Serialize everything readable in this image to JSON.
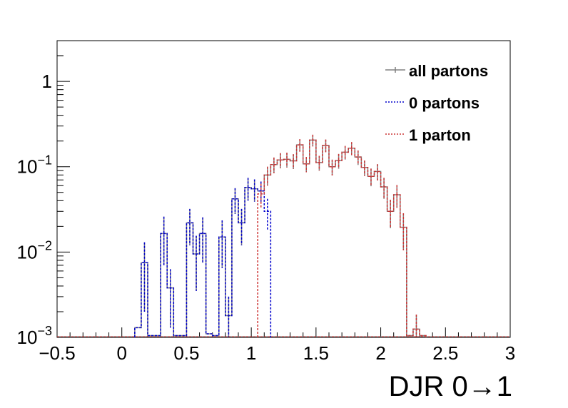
{
  "chart_data": {
    "type": "line",
    "xlabel": "DJR 0→1",
    "ylabel": "",
    "log_y": true,
    "xlim": [
      -0.5,
      3.0
    ],
    "ylim": [
      0.001,
      3.0
    ],
    "x_ticks": [
      -0.5,
      0,
      0.5,
      1,
      1.5,
      2,
      2.5,
      3
    ],
    "x_tick_labels": [
      "−0.5",
      "0",
      "0.5",
      "1",
      "1.5",
      "2",
      "2.5",
      "3"
    ],
    "y_ticks": [
      {
        "value": 0.001,
        "base": "10",
        "exp": "−3"
      },
      {
        "value": 0.01,
        "base": "10",
        "exp": "−2"
      },
      {
        "value": 0.1,
        "base": "10",
        "exp": "−1"
      },
      {
        "value": 1,
        "base": "1",
        "exp": ""
      }
    ],
    "bin_width": 0.05,
    "legend_position": "top-right",
    "series": [
      {
        "name": "all partons",
        "color": "#808080",
        "style": "solid",
        "bins": [
          {
            "x0": 0.1,
            "y": 0.0013
          },
          {
            "x0": 0.15,
            "y": 0.0075,
            "e": 0.0055
          },
          {
            "x0": 0.2,
            "y": 0.00105
          },
          {
            "x0": 0.25,
            "y": 0.00105
          },
          {
            "x0": 0.3,
            "y": 0.0165,
            "e": 0.0095
          },
          {
            "x0": 0.35,
            "y": 0.0038,
            "e": 0.0025
          },
          {
            "x0": 0.4,
            "y": 0.00105
          },
          {
            "x0": 0.45,
            "y": 0.00105
          },
          {
            "x0": 0.5,
            "y": 0.022,
            "e": 0.01
          },
          {
            "x0": 0.55,
            "y": 0.0095,
            "e": 0.006
          },
          {
            "x0": 0.6,
            "y": 0.0165,
            "e": 0.009
          },
          {
            "x0": 0.65,
            "y": 0.0011
          },
          {
            "x0": 0.7,
            "y": 0.00105
          },
          {
            "x0": 0.75,
            "y": 0.015,
            "e": 0.0085
          },
          {
            "x0": 0.8,
            "y": 0.0018,
            "e": 0.0012
          },
          {
            "x0": 0.85,
            "y": 0.042,
            "e": 0.014
          },
          {
            "x0": 0.9,
            "y": 0.022,
            "e": 0.01
          },
          {
            "x0": 0.95,
            "y": 0.057,
            "e": 0.017
          },
          {
            "x0": 1.0,
            "y": 0.055,
            "e": 0.016
          },
          {
            "x0": 1.05,
            "y": 0.052,
            "e": 0.015
          },
          {
            "x0": 1.1,
            "y": 0.08,
            "e": 0.02
          },
          {
            "x0": 1.15,
            "y": 0.106,
            "e": 0.022
          },
          {
            "x0": 1.2,
            "y": 0.12,
            "e": 0.024
          },
          {
            "x0": 1.25,
            "y": 0.122,
            "e": 0.024
          },
          {
            "x0": 1.3,
            "y": 0.117,
            "e": 0.023
          },
          {
            "x0": 1.35,
            "y": 0.18,
            "e": 0.03
          },
          {
            "x0": 1.4,
            "y": 0.108,
            "e": 0.022
          },
          {
            "x0": 1.45,
            "y": 0.205,
            "e": 0.032
          },
          {
            "x0": 1.5,
            "y": 0.112,
            "e": 0.022
          },
          {
            "x0": 1.55,
            "y": 0.178,
            "e": 0.03
          },
          {
            "x0": 1.6,
            "y": 0.1,
            "e": 0.021
          },
          {
            "x0": 1.65,
            "y": 0.118,
            "e": 0.023
          },
          {
            "x0": 1.7,
            "y": 0.148,
            "e": 0.027
          },
          {
            "x0": 1.75,
            "y": 0.165,
            "e": 0.029
          },
          {
            "x0": 1.8,
            "y": 0.13,
            "e": 0.025
          },
          {
            "x0": 1.85,
            "y": 0.098,
            "e": 0.02
          },
          {
            "x0": 1.9,
            "y": 0.077,
            "e": 0.018
          },
          {
            "x0": 1.95,
            "y": 0.088,
            "e": 0.019
          },
          {
            "x0": 2.0,
            "y": 0.058,
            "e": 0.016
          },
          {
            "x0": 2.05,
            "y": 0.03,
            "e": 0.011
          },
          {
            "x0": 2.1,
            "y": 0.047,
            "e": 0.014
          },
          {
            "x0": 2.15,
            "y": 0.0195,
            "e": 0.009
          },
          {
            "x0": 2.2,
            "y": 0.00105
          },
          {
            "x0": 2.25,
            "y": 0.00125,
            "e": 0.0006
          },
          {
            "x0": 2.3,
            "y": 0.00105
          }
        ]
      },
      {
        "name": "0 partons",
        "color": "#0000cc",
        "style": "dotted",
        "bins": [
          {
            "x0": 0.1,
            "y": 0.0013
          },
          {
            "x0": 0.15,
            "y": 0.0075,
            "e": 0.0055
          },
          {
            "x0": 0.2,
            "y": 0.00105
          },
          {
            "x0": 0.25,
            "y": 0.00105
          },
          {
            "x0": 0.3,
            "y": 0.0165,
            "e": 0.0095
          },
          {
            "x0": 0.35,
            "y": 0.0038,
            "e": 0.0025
          },
          {
            "x0": 0.4,
            "y": 0.00105
          },
          {
            "x0": 0.45,
            "y": 0.00105
          },
          {
            "x0": 0.5,
            "y": 0.022,
            "e": 0.01
          },
          {
            "x0": 0.55,
            "y": 0.0095,
            "e": 0.006
          },
          {
            "x0": 0.6,
            "y": 0.0165,
            "e": 0.009
          },
          {
            "x0": 0.65,
            "y": 0.0011
          },
          {
            "x0": 0.7,
            "y": 0.00105
          },
          {
            "x0": 0.75,
            "y": 0.015,
            "e": 0.0085
          },
          {
            "x0": 0.8,
            "y": 0.0018,
            "e": 0.0012
          },
          {
            "x0": 0.85,
            "y": 0.042,
            "e": 0.014
          },
          {
            "x0": 0.9,
            "y": 0.022,
            "e": 0.01
          },
          {
            "x0": 0.95,
            "y": 0.057,
            "e": 0.017
          },
          {
            "x0": 1.0,
            "y": 0.055,
            "e": 0.016
          },
          {
            "x0": 1.05,
            "y": 0.052,
            "e": 0.015
          },
          {
            "x0": 1.1,
            "y": 0.03,
            "e": 0.012
          }
        ]
      },
      {
        "name": "1 parton",
        "color": "#cc3333",
        "style": "dotted",
        "bins": [
          {
            "x0": 1.05,
            "y": 0.048,
            "e": 0.015
          },
          {
            "x0": 1.1,
            "y": 0.08,
            "e": 0.02
          },
          {
            "x0": 1.15,
            "y": 0.106,
            "e": 0.022
          },
          {
            "x0": 1.2,
            "y": 0.12,
            "e": 0.024
          },
          {
            "x0": 1.25,
            "y": 0.122,
            "e": 0.024
          },
          {
            "x0": 1.3,
            "y": 0.117,
            "e": 0.023
          },
          {
            "x0": 1.35,
            "y": 0.18,
            "e": 0.03
          },
          {
            "x0": 1.4,
            "y": 0.108,
            "e": 0.022
          },
          {
            "x0": 1.45,
            "y": 0.205,
            "e": 0.032
          },
          {
            "x0": 1.5,
            "y": 0.112,
            "e": 0.022
          },
          {
            "x0": 1.55,
            "y": 0.178,
            "e": 0.03
          },
          {
            "x0": 1.6,
            "y": 0.1,
            "e": 0.021
          },
          {
            "x0": 1.65,
            "y": 0.118,
            "e": 0.023
          },
          {
            "x0": 1.7,
            "y": 0.148,
            "e": 0.027
          },
          {
            "x0": 1.75,
            "y": 0.165,
            "e": 0.029
          },
          {
            "x0": 1.8,
            "y": 0.13,
            "e": 0.025
          },
          {
            "x0": 1.85,
            "y": 0.098,
            "e": 0.02
          },
          {
            "x0": 1.9,
            "y": 0.077,
            "e": 0.018
          },
          {
            "x0": 1.95,
            "y": 0.088,
            "e": 0.019
          },
          {
            "x0": 2.0,
            "y": 0.058,
            "e": 0.016
          },
          {
            "x0": 2.05,
            "y": 0.03,
            "e": 0.011
          },
          {
            "x0": 2.1,
            "y": 0.047,
            "e": 0.014
          },
          {
            "x0": 2.15,
            "y": 0.0195,
            "e": 0.009
          },
          {
            "x0": 2.2,
            "y": 0.00105
          },
          {
            "x0": 2.25,
            "y": 0.00125,
            "e": 0.0006
          },
          {
            "x0": 2.3,
            "y": 0.00105
          }
        ]
      }
    ]
  }
}
